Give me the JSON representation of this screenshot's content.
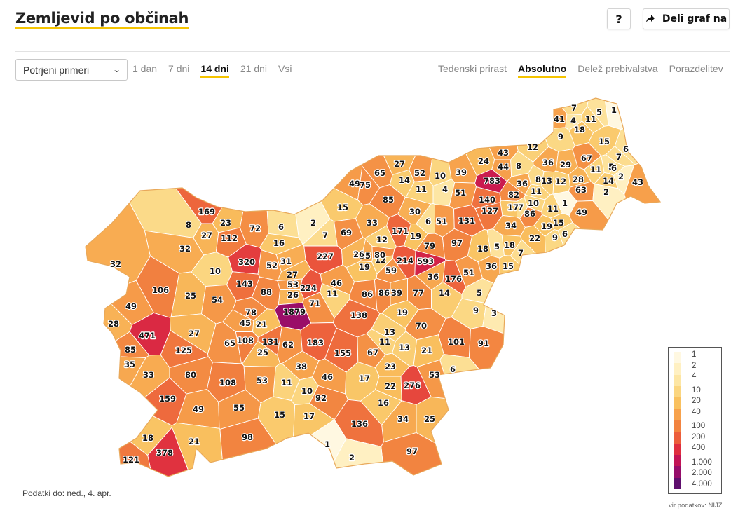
{
  "header": {
    "title": "Zemljevid po občinah",
    "help_label": "?",
    "share_label": "Deli graf na"
  },
  "controls": {
    "measure_select": "Potrjeni primeri",
    "periods": [
      {
        "label": "1 dan",
        "active": false
      },
      {
        "label": "7 dni",
        "active": false
      },
      {
        "label": "14 dni",
        "active": true
      },
      {
        "label": "21 dni",
        "active": false
      },
      {
        "label": "Vsi",
        "active": false
      }
    ],
    "views": [
      {
        "label": "Tedenski prirast",
        "active": false
      },
      {
        "label": "Absolutno",
        "active": true
      },
      {
        "label": "Delež prebivalstva",
        "active": false
      },
      {
        "label": "Porazdelitev",
        "active": false
      }
    ]
  },
  "map": {
    "country_color": "#f6a84a",
    "border_color": "#ffffff",
    "municipality_values": [
      "7",
      "5",
      "1",
      "41",
      "4",
      "11",
      "18",
      "9",
      "15",
      "6",
      "12",
      "43",
      "24",
      "783",
      "44",
      "8",
      "36",
      "29",
      "67",
      "7",
      "11",
      "5",
      "2",
      "6",
      "14",
      "43",
      "65",
      "27",
      "52",
      "10",
      "39",
      "49",
      "75",
      "14",
      "11",
      "4",
      "51",
      "82",
      "36",
      "11",
      "8",
      "13",
      "12",
      "28",
      "63",
      "2",
      "85",
      "7",
      "140",
      "10",
      "86",
      "11",
      "1",
      "49",
      "15",
      "30",
      "6",
      "51",
      "131",
      "127",
      "17",
      "34",
      "19",
      "15",
      "9",
      "6",
      "169",
      "23",
      "72",
      "6",
      "2",
      "171",
      "79",
      "97",
      "18",
      "5",
      "18",
      "22",
      "51",
      "8",
      "27",
      "112",
      "16",
      "69",
      "33",
      "7",
      "19",
      "7",
      "36",
      "15",
      "12",
      "32",
      "320",
      "52",
      "31",
      "227",
      "35",
      "26",
      "214",
      "593",
      "12",
      "80",
      "10",
      "27",
      "19",
      "59",
      "36",
      "176",
      "5",
      "32",
      "143",
      "53",
      "46",
      "88",
      "26",
      "224",
      "11",
      "86",
      "86",
      "39",
      "77",
      "14",
      "9",
      "3",
      "106",
      "71",
      "25",
      "54",
      "1879",
      "138",
      "19",
      "70",
      "49",
      "471",
      "28",
      "27",
      "78",
      "45",
      "21",
      "13",
      "101",
      "91",
      "85",
      "125",
      "65",
      "108",
      "25",
      "131",
      "62",
      "183",
      "155",
      "67",
      "11",
      "13",
      "21",
      "35",
      "33",
      "80",
      "23",
      "6",
      "53",
      "38",
      "11",
      "46",
      "17",
      "22",
      "276",
      "159",
      "108",
      "53",
      "10",
      "92",
      "16",
      "49",
      "55",
      "15",
      "17",
      "34",
      "25",
      "136",
      "18",
      "21",
      "98",
      "378",
      "1",
      "97",
      "121",
      "2"
    ]
  },
  "legend": {
    "labels": [
      "1",
      "2",
      "4",
      "10",
      "20",
      "40",
      "100",
      "200",
      "400",
      "1.000",
      "2.000",
      "4.000"
    ],
    "colors": [
      "#fff8e1",
      "#fff0c2",
      "#fde6a4",
      "#fbd680",
      "#f9c15f",
      "#f7a24c",
      "#f28340",
      "#ec5d3b",
      "#df2e3f",
      "#c21455",
      "#960d6a",
      "#5f0f6e"
    ]
  },
  "footnote": "Podatki do: ned., 4. apr.",
  "source": "vir podatkov: NIJZ"
}
